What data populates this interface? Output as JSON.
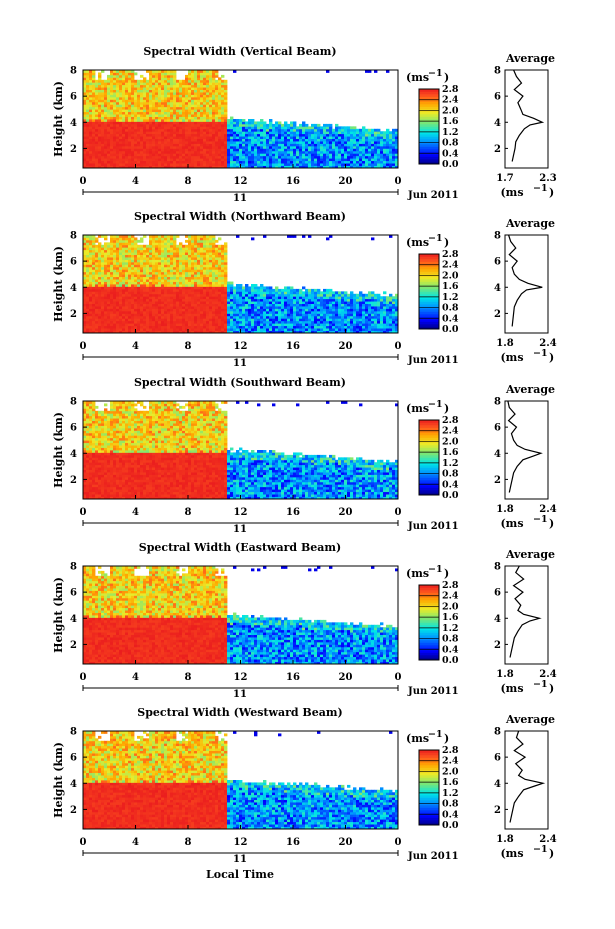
{
  "figure": {
    "x_axis_label": "Local Time",
    "y_axis_label": "Height (km)",
    "date_label": "Jun 2011",
    "day_label": "11",
    "average_title": "Average",
    "unit_label": "(ms",
    "unit_exp": "−1",
    "unit_close": ")"
  },
  "chart_data": [
    {
      "type": "heatmap",
      "title": "Spectral Width (Vertical Beam)",
      "x_ticks": [
        "0",
        "4",
        "8",
        "12",
        "16",
        "20",
        "0"
      ],
      "y_ticks": [
        "2",
        "4",
        "6",
        "8"
      ],
      "xlim_hours": [
        0,
        24
      ],
      "ylim_km": [
        0.5,
        8
      ],
      "colorbar_ticks": [
        "0.0",
        "0.4",
        "0.8",
        "1.2",
        "1.6",
        "2.0",
        "2.4",
        "2.8"
      ],
      "colorbar_range": [
        0.0,
        2.8
      ],
      "average": {
        "xlim": [
          1.7,
          2.3
        ],
        "x_ticks": [
          "1.7",
          "2.3"
        ],
        "y_ticks": [
          "2",
          "4",
          "6",
          "8"
        ],
        "height_km": [
          1.0,
          1.5,
          2.0,
          2.5,
          3.0,
          3.5,
          3.8,
          4.0,
          4.3,
          4.6,
          5.0,
          5.5,
          6.0,
          6.5,
          7.0,
          7.5,
          8.0
        ],
        "value": [
          1.8,
          1.82,
          1.84,
          1.85,
          1.9,
          1.97,
          2.05,
          2.22,
          2.1,
          1.95,
          1.92,
          1.88,
          1.95,
          1.83,
          1.93,
          1.86,
          1.82
        ]
      }
    },
    {
      "type": "heatmap",
      "title": "Spectral Width (Northward Beam)",
      "x_ticks": [
        "0",
        "4",
        "8",
        "12",
        "16",
        "20",
        "0"
      ],
      "y_ticks": [
        "2",
        "4",
        "6",
        "8"
      ],
      "xlim_hours": [
        0,
        24
      ],
      "ylim_km": [
        0.5,
        8
      ],
      "colorbar_ticks": [
        "0.0",
        "0.4",
        "0.8",
        "1.2",
        "1.6",
        "2.0",
        "2.4",
        "2.8"
      ],
      "colorbar_range": [
        0.0,
        2.8
      ],
      "average": {
        "xlim": [
          1.8,
          2.4
        ],
        "x_ticks": [
          "1.8",
          "2.4"
        ],
        "y_ticks": [
          "2",
          "4",
          "6",
          "8"
        ],
        "height_km": [
          1.0,
          1.5,
          2.0,
          2.5,
          3.0,
          3.5,
          3.8,
          4.0,
          4.3,
          4.6,
          5.0,
          5.5,
          6.0,
          6.5,
          7.0,
          7.5,
          8.0
        ],
        "value": [
          1.9,
          1.91,
          1.92,
          1.93,
          1.97,
          2.03,
          2.1,
          2.32,
          2.12,
          2.0,
          1.93,
          1.9,
          1.97,
          1.86,
          1.95,
          1.88,
          1.85
        ]
      }
    },
    {
      "type": "heatmap",
      "title": "Spectral Width (Southward Beam)",
      "x_ticks": [
        "0",
        "4",
        "8",
        "12",
        "16",
        "20",
        "0"
      ],
      "y_ticks": [
        "2",
        "4",
        "6",
        "8"
      ],
      "xlim_hours": [
        0,
        24
      ],
      "ylim_km": [
        0.5,
        8
      ],
      "colorbar_ticks": [
        "0.0",
        "0.4",
        "0.8",
        "1.2",
        "1.6",
        "2.0",
        "2.4",
        "2.8"
      ],
      "colorbar_range": [
        0.0,
        2.8
      ],
      "average": {
        "xlim": [
          1.8,
          2.4
        ],
        "x_ticks": [
          "1.8",
          "2.4"
        ],
        "y_ticks": [
          "2",
          "4",
          "6",
          "8"
        ],
        "height_km": [
          1.0,
          1.5,
          2.0,
          2.5,
          3.0,
          3.5,
          3.8,
          4.0,
          4.3,
          4.6,
          5.0,
          5.5,
          6.0,
          6.5,
          7.0,
          7.5,
          8.0
        ],
        "value": [
          1.86,
          1.88,
          1.9,
          1.92,
          1.97,
          2.05,
          2.2,
          2.3,
          2.08,
          1.97,
          1.92,
          1.89,
          1.96,
          1.85,
          1.94,
          1.86,
          1.84
        ]
      }
    },
    {
      "type": "heatmap",
      "title": "Spectral Width (Eastward Beam)",
      "x_ticks": [
        "0",
        "4",
        "8",
        "12",
        "16",
        "20",
        "0"
      ],
      "y_ticks": [
        "2",
        "4",
        "6",
        "8"
      ],
      "xlim_hours": [
        0,
        24
      ],
      "ylim_km": [
        0.5,
        8
      ],
      "colorbar_ticks": [
        "0.0",
        "0.4",
        "0.8",
        "1.2",
        "1.6",
        "2.0",
        "2.4",
        "2.8"
      ],
      "colorbar_range": [
        0.0,
        2.8
      ],
      "average": {
        "xlim": [
          1.8,
          2.4
        ],
        "x_ticks": [
          "1.8",
          "2.4"
        ],
        "y_ticks": [
          "2",
          "4",
          "6",
          "8"
        ],
        "height_km": [
          1.0,
          1.5,
          2.0,
          2.5,
          3.0,
          3.5,
          3.8,
          4.0,
          4.3,
          4.6,
          5.0,
          5.5,
          6.0,
          6.5,
          7.0,
          7.5,
          8.0
        ],
        "value": [
          1.87,
          1.89,
          1.91,
          1.93,
          1.98,
          2.04,
          2.15,
          2.28,
          2.06,
          1.98,
          2.02,
          1.94,
          2.05,
          1.92,
          2.06,
          1.95,
          2.0
        ]
      }
    },
    {
      "type": "heatmap",
      "title": "Spectral Width (Westward Beam)",
      "x_ticks": [
        "0",
        "4",
        "8",
        "12",
        "16",
        "20",
        "0"
      ],
      "y_ticks": [
        "2",
        "4",
        "6",
        "8"
      ],
      "xlim_hours": [
        0,
        24
      ],
      "ylim_km": [
        0.5,
        8
      ],
      "colorbar_ticks": [
        "0.0",
        "0.4",
        "0.8",
        "1.2",
        "1.6",
        "2.0",
        "2.4",
        "2.8"
      ],
      "colorbar_range": [
        0.0,
        2.8
      ],
      "average": {
        "xlim": [
          1.8,
          2.4
        ],
        "x_ticks": [
          "1.8",
          "2.4"
        ],
        "y_ticks": [
          "2",
          "4",
          "6",
          "8"
        ],
        "height_km": [
          1.0,
          1.5,
          2.0,
          2.5,
          3.0,
          3.5,
          3.8,
          4.0,
          4.3,
          4.6,
          5.0,
          5.5,
          6.0,
          6.5,
          7.0,
          7.5,
          8.0
        ],
        "value": [
          1.87,
          1.89,
          1.91,
          1.93,
          1.99,
          2.06,
          2.22,
          2.33,
          2.08,
          1.99,
          2.04,
          1.95,
          2.08,
          1.93,
          2.05,
          1.96,
          1.99
        ]
      }
    }
  ]
}
